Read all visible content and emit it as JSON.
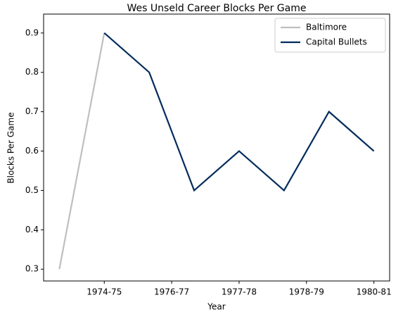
{
  "chart_data": {
    "type": "line",
    "title": "Wes Unseld Career Blocks Per Game",
    "xlabel": "Year",
    "ylabel": "Blocks Per Game",
    "series": [
      {
        "name": "Baltimore",
        "color": "#bfbfbf",
        "x": [
          0,
          1
        ],
        "values": [
          0.3,
          0.9
        ]
      },
      {
        "name": "Capital Bullets",
        "color": "#002b5c",
        "x": [
          1,
          2,
          3,
          4,
          5,
          6,
          7
        ],
        "values": [
          0.9,
          0.8,
          0.5,
          0.6,
          0.5,
          0.7,
          0.6
        ]
      }
    ],
    "xlim": [
      -0.35,
      7.35
    ],
    "xticks": [
      {
        "value": 1,
        "label": "1974-75"
      },
      {
        "value": 2.5,
        "label": "1976-77"
      },
      {
        "value": 4,
        "label": "1977-78"
      },
      {
        "value": 5.5,
        "label": "1978-79"
      },
      {
        "value": 7,
        "label": "1980-81"
      }
    ],
    "ylim": [
      0.27,
      0.948
    ],
    "yticks": [
      0.3,
      0.4,
      0.5,
      0.6,
      0.7,
      0.8,
      0.9
    ],
    "grid": false,
    "legend": "upper right"
  }
}
